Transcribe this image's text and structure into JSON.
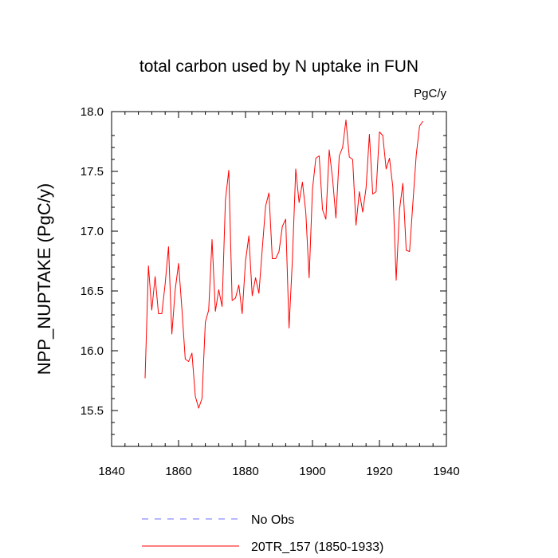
{
  "chart_data": {
    "type": "line",
    "title": "total carbon used by N uptake in FUN",
    "units_label": "PgC/y",
    "ylabel": "NPP_NUPTAKE  (PgC/y)",
    "xlabel": "",
    "xlim": [
      1840,
      1940
    ],
    "ylim": [
      15.2,
      18.0
    ],
    "xticks": [
      1840,
      1860,
      1880,
      1900,
      1920,
      1940
    ],
    "yticks": [
      15.5,
      16.0,
      16.5,
      17.0,
      17.5,
      18.0
    ],
    "ytick_labels": [
      "15.5",
      "16.0",
      "16.5",
      "17.0",
      "17.5",
      "18.0"
    ],
    "series": [
      {
        "name": "No Obs",
        "color": "#6f6fff",
        "dashed": true,
        "x": [],
        "values": []
      },
      {
        "name": "20TR_157 (1850-1933)",
        "color": "#ff0000",
        "dashed": false,
        "x": [
          1850,
          1851,
          1852,
          1853,
          1854,
          1855,
          1856,
          1857,
          1858,
          1859,
          1860,
          1861,
          1862,
          1863,
          1864,
          1865,
          1866,
          1867,
          1868,
          1869,
          1870,
          1871,
          1872,
          1873,
          1874,
          1875,
          1876,
          1877,
          1878,
          1879,
          1880,
          1881,
          1882,
          1883,
          1884,
          1885,
          1886,
          1887,
          1888,
          1889,
          1890,
          1891,
          1892,
          1893,
          1894,
          1895,
          1896,
          1897,
          1898,
          1899,
          1900,
          1901,
          1902,
          1903,
          1904,
          1905,
          1906,
          1907,
          1908,
          1909,
          1910,
          1911,
          1912,
          1913,
          1914,
          1915,
          1916,
          1917,
          1918,
          1919,
          1920,
          1921,
          1922,
          1923,
          1924,
          1925,
          1926,
          1927,
          1928,
          1929,
          1930,
          1931,
          1932,
          1933
        ],
        "values": [
          15.77,
          16.71,
          16.34,
          16.62,
          16.31,
          16.31,
          16.56,
          16.87,
          16.14,
          16.51,
          16.73,
          16.35,
          15.93,
          15.91,
          15.98,
          15.62,
          15.52,
          15.6,
          16.24,
          16.34,
          16.93,
          16.33,
          16.51,
          16.37,
          17.26,
          17.51,
          16.42,
          16.44,
          16.55,
          16.31,
          16.75,
          16.96,
          16.46,
          16.61,
          16.48,
          16.85,
          17.21,
          17.32,
          16.77,
          16.77,
          16.83,
          17.04,
          17.1,
          16.19,
          16.76,
          17.52,
          17.24,
          17.41,
          17.16,
          16.61,
          17.35,
          17.61,
          17.63,
          17.18,
          17.1,
          17.68,
          17.44,
          17.11,
          17.63,
          17.7,
          17.93,
          17.62,
          17.6,
          17.05,
          17.33,
          17.16,
          17.36,
          17.81,
          17.31,
          17.33,
          17.83,
          17.8,
          17.52,
          17.61,
          17.37,
          16.59,
          17.18,
          17.4,
          16.84,
          16.83,
          17.24,
          17.64,
          17.88,
          17.92
        ]
      }
    ]
  }
}
